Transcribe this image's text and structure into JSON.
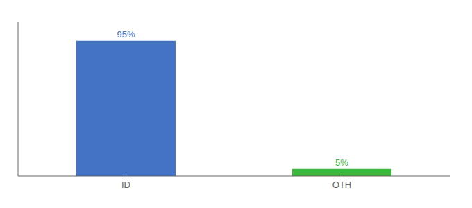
{
  "chart_data": {
    "type": "bar",
    "categories": [
      "ID",
      "OTH"
    ],
    "values": [
      95,
      5
    ],
    "value_labels": [
      "95%",
      "5%"
    ],
    "colors": [
      "#4472c4",
      "#3cb83c"
    ],
    "ylim": [
      0,
      108
    ],
    "data_labels": true,
    "tick_labels": "x",
    "grid": false
  }
}
